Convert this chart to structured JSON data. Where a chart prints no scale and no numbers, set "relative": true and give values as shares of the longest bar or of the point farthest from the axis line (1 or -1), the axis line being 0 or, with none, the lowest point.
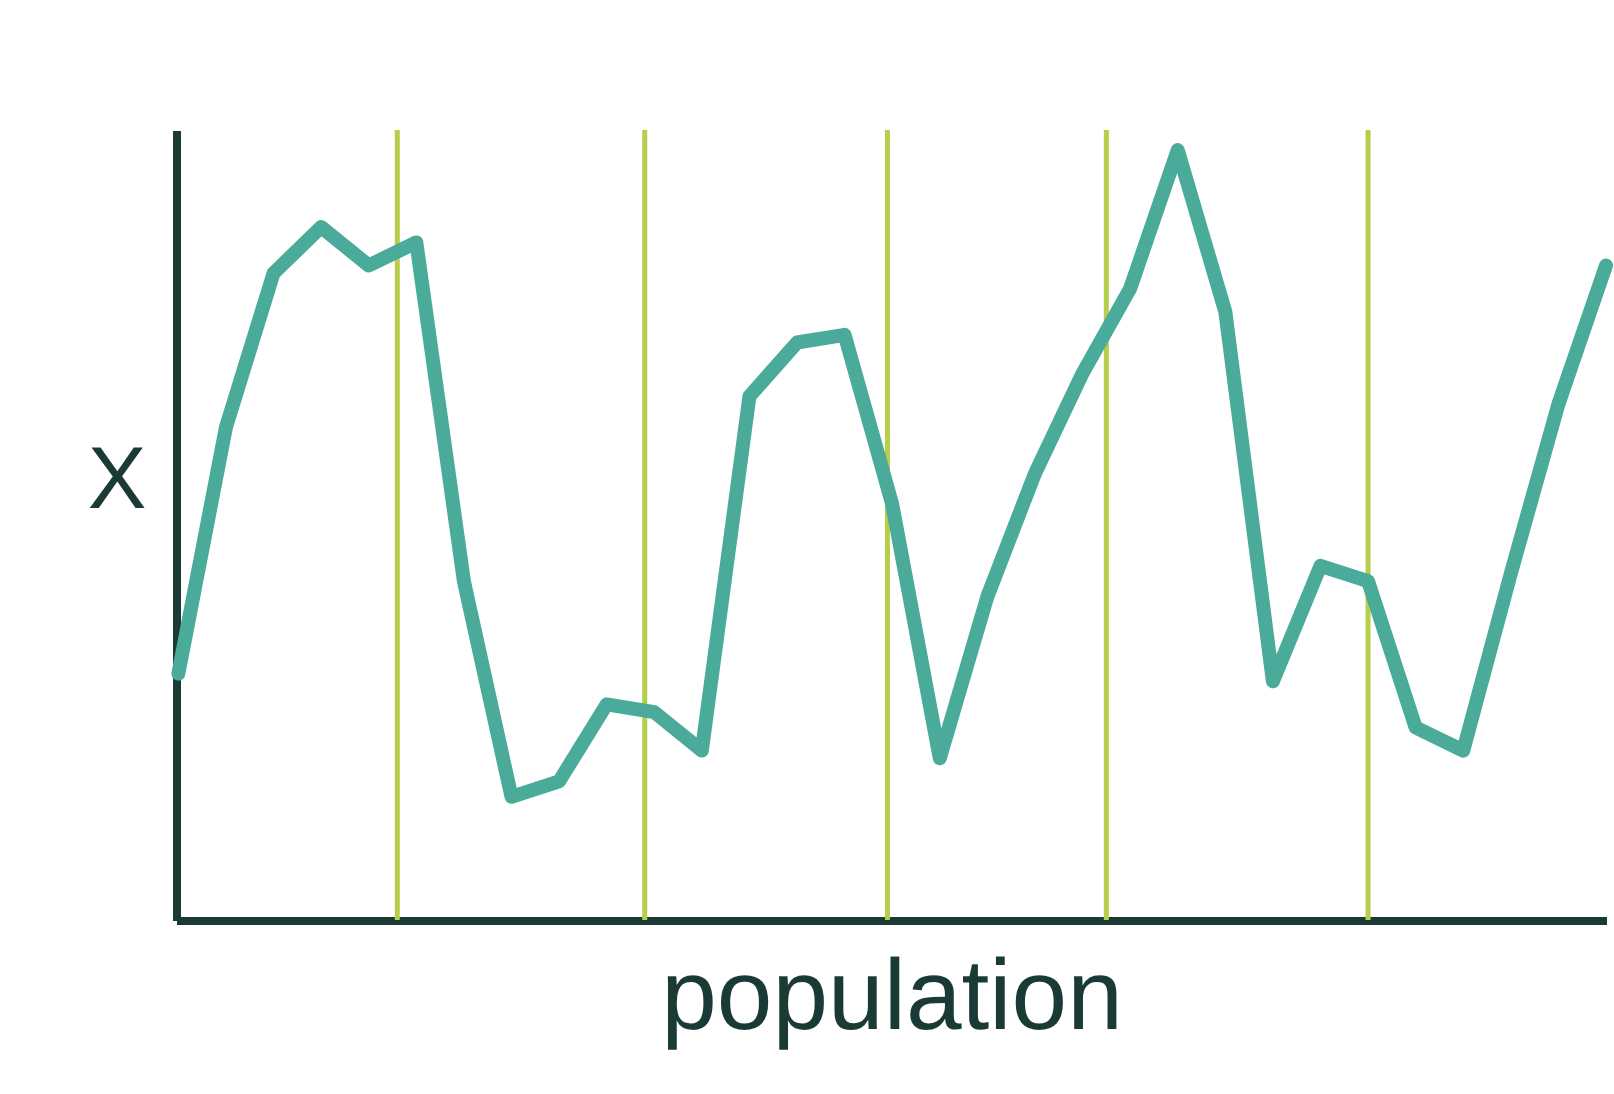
{
  "chart_data": {
    "type": "line",
    "relative": true,
    "line_style": "solid",
    "xlabel": "population",
    "ylabel": "X",
    "tick_labels": false,
    "categories": [
      null,
      null,
      null,
      null,
      null,
      null,
      null,
      null,
      null,
      null,
      null,
      null,
      null,
      null,
      null,
      null,
      null,
      null,
      null,
      null,
      null,
      null,
      null,
      null,
      null,
      null,
      null,
      null,
      null,
      null,
      null
    ],
    "series": [
      {
        "color": "#4aab9a",
        "values": [
          0.32,
          0.64,
          0.84,
          0.9,
          0.85,
          0.88,
          0.44,
          0.16,
          0.18,
          0.28,
          0.27,
          0.22,
          0.68,
          0.75,
          0.76,
          0.54,
          0.21,
          0.42,
          0.58,
          0.71,
          0.82,
          1.0,
          0.79,
          0.31,
          0.46,
          0.44,
          0.25,
          0.22,
          0.45,
          0.67,
          0.85
        ]
      }
    ]
  }
}
